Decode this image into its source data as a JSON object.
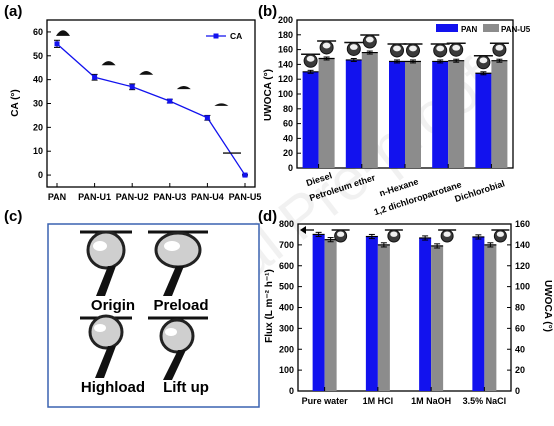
{
  "panels": {
    "a": "(a)",
    "b": "(b)",
    "c": "(c)",
    "d": "(d)"
  },
  "colors": {
    "blue": "#1212ee",
    "gray": "#8c8c8c",
    "bg": "#ffffff"
  },
  "watermark": "Journal Pre-proof",
  "photos": {
    "origin": "Origin",
    "preload": "Preload",
    "highload": "Highload",
    "liftup": "Lift up"
  },
  "chart_data": [
    {
      "id": "a",
      "type": "line",
      "ylabel": "CA (°)",
      "ylim": [
        -5,
        65
      ],
      "yticks": [
        0,
        10,
        20,
        30,
        40,
        50,
        60
      ],
      "categories": [
        "PAN",
        "PAN-U1",
        "PAN-U2",
        "PAN-U3",
        "PAN-U4",
        "PAN-U5"
      ],
      "series": [
        {
          "name": "CA",
          "values": [
            55,
            41,
            37,
            31,
            24,
            0
          ],
          "errors": [
            1.5,
            1.2,
            1.2,
            0.8,
            1.0,
            0.3
          ]
        }
      ],
      "legend": "top-right",
      "icons": "water-droplet insets"
    },
    {
      "id": "b",
      "type": "bar",
      "ylabel": "UWOCA (°)",
      "ylim": [
        0,
        200
      ],
      "yticks": [
        0,
        20,
        40,
        60,
        80,
        100,
        120,
        140,
        160,
        180,
        200
      ],
      "categories": [
        "Diesel",
        "Petroleum ether",
        "n-Hexane",
        "1,2 dichloropatrotane",
        "Dichlorobial"
      ],
      "series": [
        {
          "name": "PAN",
          "values": [
            130,
            146,
            144,
            144,
            128
          ],
          "errors": [
            2,
            2,
            2,
            2,
            2
          ]
        },
        {
          "name": "PAN-U5",
          "values": [
            148,
            156,
            144,
            145,
            145
          ],
          "errors": [
            2,
            2,
            2,
            2,
            2
          ]
        }
      ],
      "legend": "top-right"
    },
    {
      "id": "d",
      "type": "bar",
      "ylabel": "Flux (L m⁻² h⁻¹)",
      "y2label": "UWOCA (°)",
      "ylim": [
        0,
        800
      ],
      "yticks": [
        0,
        100,
        200,
        300,
        400,
        500,
        600,
        700,
        800
      ],
      "y2lim": [
        0,
        160
      ],
      "y2ticks": [
        0,
        20,
        40,
        60,
        80,
        100,
        120,
        140,
        160
      ],
      "categories": [
        "Pure water",
        "1M HCl",
        "1M NaOH",
        "3.5% NaCl"
      ],
      "series": [
        {
          "name": "Flux",
          "axis": "left",
          "values": [
            750,
            740,
            733,
            738
          ],
          "errors": [
            10,
            10,
            10,
            10
          ]
        },
        {
          "name": "UWOCA",
          "axis": "right",
          "values": [
            145,
            140,
            139,
            140
          ],
          "errors": [
            2,
            2,
            2,
            2
          ]
        }
      ]
    }
  ]
}
